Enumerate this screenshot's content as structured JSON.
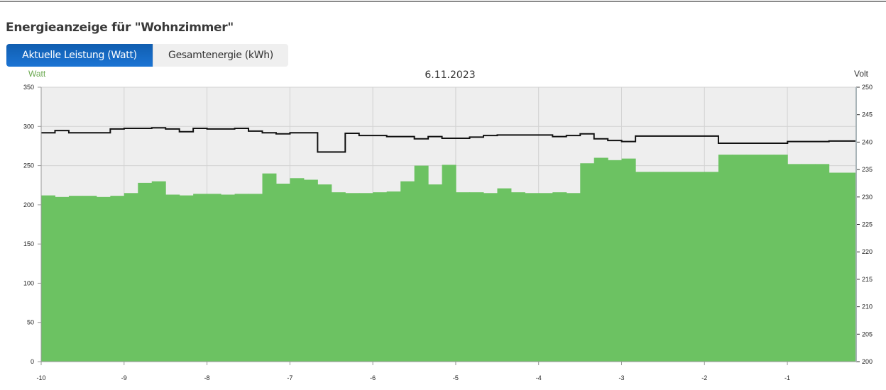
{
  "page_title": "Energieanzeige für \"Wohnzimmer\"",
  "tabs": [
    {
      "label": "Aktuelle Leistung (Watt)",
      "active": true
    },
    {
      "label": "Gesamtenergie (kWh)",
      "active": false
    }
  ],
  "colors": {
    "accent": "#1a6fc9",
    "power": "#6cc262",
    "voltage": "#111111",
    "plot_bg": "#eeeeee",
    "watt_label": "#6aa84f"
  },
  "chart_data": {
    "type": "area",
    "title": "6.11.2023",
    "ylabel_left": "Watt",
    "ylabel_right": "Volt",
    "xlim": [
      -10,
      -0.17
    ],
    "ylim_left": [
      0,
      350
    ],
    "ylim_right": [
      200,
      250
    ],
    "x_ticks": [
      "-10",
      "-9",
      "-8",
      "-7",
      "-6",
      "-5",
      "-4",
      "-3",
      "-2",
      "-1"
    ],
    "y_ticks_left": [
      "0",
      "50",
      "100",
      "150",
      "200",
      "250",
      "300",
      "350"
    ],
    "y_ticks_right": [
      "200",
      "205",
      "210",
      "215",
      "220",
      "225",
      "230",
      "235",
      "240",
      "245",
      "250"
    ],
    "grid": true,
    "step_interval": 0.1667,
    "series": [
      {
        "axis": "left",
        "style": "step-area",
        "values": [
          212,
          210,
          211.5,
          211.5,
          210,
          211.5,
          215,
          228,
          230,
          213,
          212,
          214,
          214,
          213,
          214,
          214,
          240,
          227,
          234,
          232,
          226,
          216,
          215,
          215,
          216,
          217,
          230,
          250,
          226,
          251,
          216,
          216,
          215,
          221,
          216,
          215,
          215,
          216,
          215,
          253,
          260,
          257,
          259,
          242,
          242,
          242,
          242,
          242,
          242,
          264,
          264,
          264,
          264,
          264,
          252,
          252,
          252,
          241,
          241
        ]
      },
      {
        "axis": "right",
        "style": "step-line",
        "values": [
          241.7,
          242.1,
          241.7,
          241.7,
          241.7,
          242.4,
          242.5,
          242.5,
          242.6,
          242.4,
          241.9,
          242.5,
          242.4,
          242.4,
          242.5,
          242.0,
          241.7,
          241.5,
          241.7,
          241.7,
          238.2,
          238.2,
          241.6,
          241.2,
          241.2,
          241.0,
          241.0,
          240.6,
          241.0,
          240.7,
          240.7,
          240.9,
          241.2,
          241.3,
          241.3,
          241.3,
          241.3,
          241.0,
          241.2,
          241.5,
          240.6,
          240.3,
          240.1,
          241.1,
          241.1,
          241.1,
          241.1,
          241.1,
          241.1,
          239.8,
          239.8,
          239.8,
          239.8,
          239.8,
          240.1,
          240.1,
          240.1,
          240.2,
          240.2
        ]
      }
    ]
  }
}
